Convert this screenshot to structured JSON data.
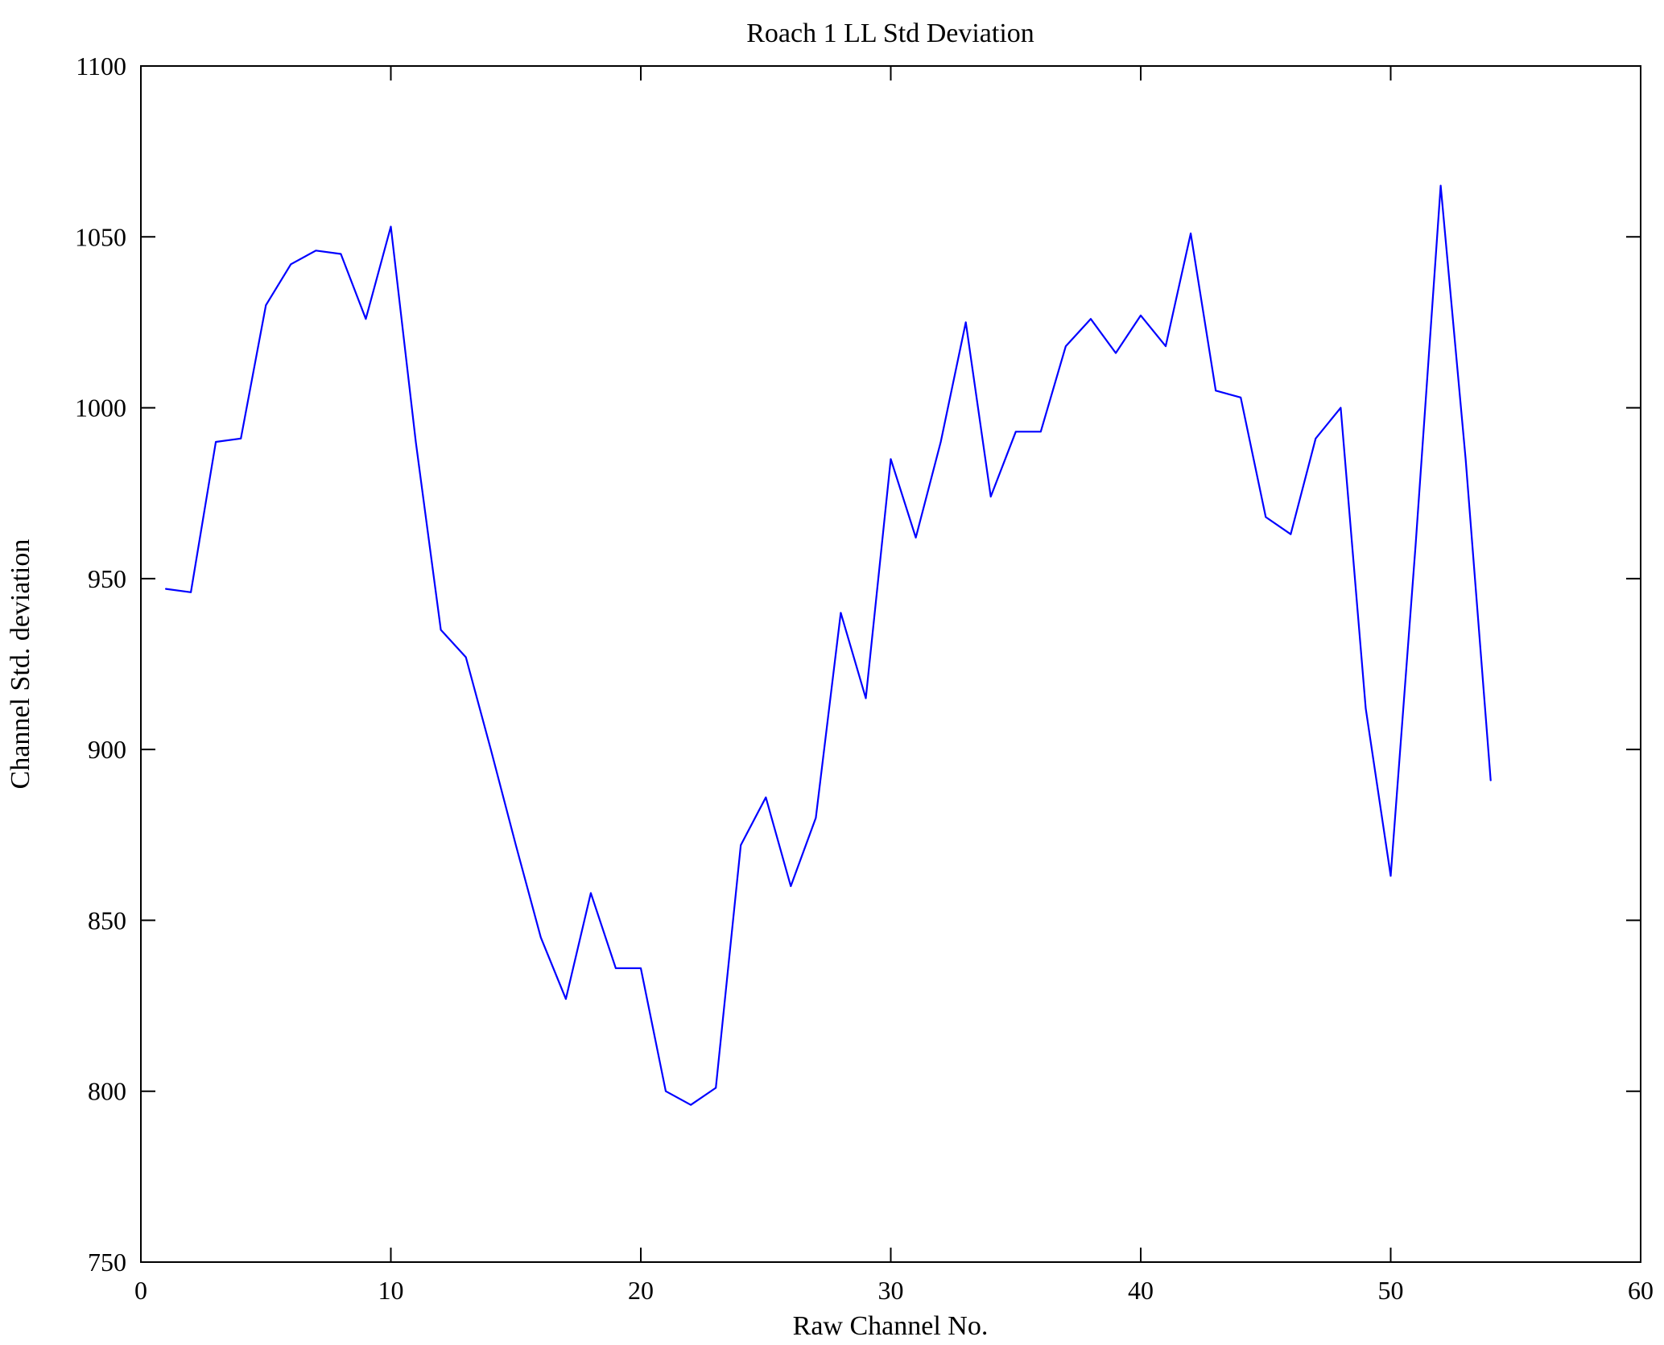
{
  "figure": {
    "background": "#ffffff",
    "border_color": "#000000"
  },
  "chart_data": {
    "type": "line",
    "title": "Roach 1 LL Std Deviation",
    "xlabel": "Raw Channel No.",
    "ylabel": "Channel Std. deviation",
    "xlim": [
      0,
      60
    ],
    "ylim": [
      750,
      1100
    ],
    "xticks": [
      0,
      10,
      20,
      30,
      40,
      50,
      60
    ],
    "yticks": [
      750,
      800,
      850,
      900,
      950,
      1000,
      1050,
      1100
    ],
    "grid": false,
    "legend": "none",
    "line_color": "#0000ff",
    "series": [
      {
        "name": "Channel Std deviation",
        "x": [
          1,
          2,
          3,
          4,
          5,
          6,
          7,
          8,
          9,
          10,
          11,
          12,
          13,
          14,
          15,
          16,
          17,
          18,
          19,
          20,
          21,
          22,
          23,
          24,
          25,
          26,
          27,
          28,
          29,
          30,
          31,
          32,
          33,
          34,
          35,
          36,
          37,
          38,
          39,
          40,
          41,
          42,
          43,
          44,
          45,
          46,
          47,
          48,
          49,
          50,
          51,
          52,
          53,
          54
        ],
        "y": [
          947,
          946,
          990,
          991,
          1030,
          1042,
          1046,
          1045,
          1026,
          1053,
          990,
          935,
          927,
          900,
          872,
          845,
          827,
          858,
          836,
          836,
          800,
          796,
          801,
          872,
          886,
          860,
          880,
          940,
          915,
          985,
          962,
          990,
          1025,
          974,
          993,
          993,
          1018,
          1026,
          1016,
          1027,
          1018,
          1051,
          1005,
          1003,
          968,
          963,
          991,
          1000,
          912,
          863,
          960,
          1065,
          985,
          891
        ]
      }
    ]
  }
}
